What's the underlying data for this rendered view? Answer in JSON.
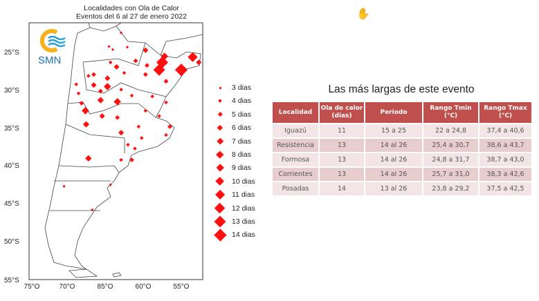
{
  "map": {
    "title_line1": "Localidades con Ola de Calor",
    "title_line2": "Eventos del 6 al 27 de enero 2022",
    "logo_text": "SMN",
    "lat_labels": [
      "25°S",
      "30°S",
      "35°S",
      "40°S",
      "45°S",
      "50°S",
      "55°S"
    ],
    "lon_labels": [
      "75°O",
      "70°O",
      "85°O",
      "60°O",
      "55°O"
    ],
    "marker_color": "#ff1010",
    "points": [
      {
        "lon": -62.9,
        "lat": 22.5,
        "days": 3
      },
      {
        "lon": -64.5,
        "lat": 24.3,
        "days": 3
      },
      {
        "lon": -64.0,
        "lat": 24.7,
        "days": 3
      },
      {
        "lon": -62.1,
        "lat": 24.4,
        "days": 3
      },
      {
        "lon": -59.7,
        "lat": 24.8,
        "days": 6
      },
      {
        "lon": -57.2,
        "lat": 25.6,
        "days": 8
      },
      {
        "lon": -53.5,
        "lat": 25.7,
        "days": 11
      },
      {
        "lon": -52.7,
        "lat": 26.4,
        "days": 6
      },
      {
        "lon": -57.5,
        "lat": 26.4,
        "days": 13
      },
      {
        "lon": -57.9,
        "lat": 27.4,
        "days": 13
      },
      {
        "lon": -55.0,
        "lat": 27.4,
        "days": 14
      },
      {
        "lon": -59.5,
        "lat": 26.8,
        "days": 5
      },
      {
        "lon": -61.0,
        "lat": 26.2,
        "days": 5
      },
      {
        "lon": -63.5,
        "lat": 27.0,
        "days": 6
      },
      {
        "lon": -64.3,
        "lat": 26.4,
        "days": 4
      },
      {
        "lon": -66.5,
        "lat": 28.0,
        "days": 5
      },
      {
        "lon": -64.7,
        "lat": 28.5,
        "days": 6
      },
      {
        "lon": -62.5,
        "lat": 27.8,
        "days": 4
      },
      {
        "lon": -59.7,
        "lat": 28.0,
        "days": 5
      },
      {
        "lon": -57.0,
        "lat": 28.9,
        "days": 5
      },
      {
        "lon": -64.7,
        "lat": 29.6,
        "days": 8
      },
      {
        "lon": -66.5,
        "lat": 29.4,
        "days": 6
      },
      {
        "lon": -67.2,
        "lat": 28.2,
        "days": 4
      },
      {
        "lon": -65.6,
        "lat": 30.2,
        "days": 5
      },
      {
        "lon": -62.9,
        "lat": 30.0,
        "days": 4
      },
      {
        "lon": -65.6,
        "lat": 31.4,
        "days": 7
      },
      {
        "lon": -63.4,
        "lat": 31.6,
        "days": 8
      },
      {
        "lon": -61.5,
        "lat": 30.8,
        "days": 4
      },
      {
        "lon": -58.8,
        "lat": 30.9,
        "days": 4
      },
      {
        "lon": -57.0,
        "lat": 31.7,
        "days": 4
      },
      {
        "lon": -67.6,
        "lat": 32.8,
        "days": 8
      },
      {
        "lon": -67.5,
        "lat": 34.6,
        "days": 7
      },
      {
        "lon": -65.4,
        "lat": 33.5,
        "days": 6
      },
      {
        "lon": -63.4,
        "lat": 33.7,
        "days": 5
      },
      {
        "lon": -59.7,
        "lat": 32.8,
        "days": 4
      },
      {
        "lon": -57.9,
        "lat": 33.5,
        "days": 4
      },
      {
        "lon": -56.5,
        "lat": 34.9,
        "days": 5
      },
      {
        "lon": -57.0,
        "lat": 36.0,
        "days": 4
      },
      {
        "lon": -60.6,
        "lat": 34.9,
        "days": 4
      },
      {
        "lon": -60.2,
        "lat": 36.4,
        "days": 4
      },
      {
        "lon": -62.0,
        "lat": 37.3,
        "days": 4
      },
      {
        "lon": -62.9,
        "lat": 35.7,
        "days": 6
      },
      {
        "lon": -61.1,
        "lat": 37.8,
        "days": 4
      },
      {
        "lon": -61.5,
        "lat": 39.3,
        "days": 5
      },
      {
        "lon": -67.2,
        "lat": 39.1,
        "days": 7
      },
      {
        "lon": -62.9,
        "lat": 39.3,
        "days": 4
      },
      {
        "lon": -70.4,
        "lat": 42.8,
        "days": 3
      },
      {
        "lon": -64.3,
        "lat": 42.6,
        "days": 3
      },
      {
        "lon": -66.7,
        "lat": 45.9,
        "days": 3
      },
      {
        "lon": -68.5,
        "lat": 30.5,
        "days": 4
      },
      {
        "lon": -68.1,
        "lat": 31.8,
        "days": 5
      },
      {
        "lon": -68.8,
        "lat": 29.3,
        "days": 4
      }
    ]
  },
  "legend": [
    {
      "days": 3,
      "label": "3 dias"
    },
    {
      "days": 4,
      "label": "4 dias"
    },
    {
      "days": 5,
      "label": "5 dias"
    },
    {
      "days": 6,
      "label": "6 dias"
    },
    {
      "days": 7,
      "label": "7 dias"
    },
    {
      "days": 8,
      "label": "8 dias"
    },
    {
      "days": 9,
      "label": "9 dias"
    },
    {
      "days": 10,
      "label": "10 dias"
    },
    {
      "days": 11,
      "label": "11 dias"
    },
    {
      "days": 12,
      "label": "12 dias"
    },
    {
      "days": 13,
      "label": "13 dias"
    },
    {
      "days": 14,
      "label": "14 dias"
    }
  ],
  "table": {
    "title": "Las más largas de este evento",
    "headers": [
      "Localidad",
      "Ola de calor (dias)",
      "Periodo",
      "Rango Tmin (°C)",
      "Rango Tmax (°C)"
    ],
    "rows": [
      [
        "Iguazú",
        "11",
        "15 a 25",
        "22 a 24,8",
        "37,4 a 40,6"
      ],
      [
        "Resistencia",
        "13",
        "14 al 26",
        "25,4 a 30,7",
        "38,6 a 43,7"
      ],
      [
        "Formosa",
        "13",
        "14 al 26",
        "24,8 a 31,7",
        "38,7 a 43,0"
      ],
      [
        "Corrientes",
        "13",
        "14 al 26",
        "25,7 a 31,0",
        "38,3 a 42,6"
      ],
      [
        "Posadas",
        "14",
        "13 al 26",
        "23,8  a 29,2",
        "37,5 a 42,5"
      ]
    ]
  }
}
